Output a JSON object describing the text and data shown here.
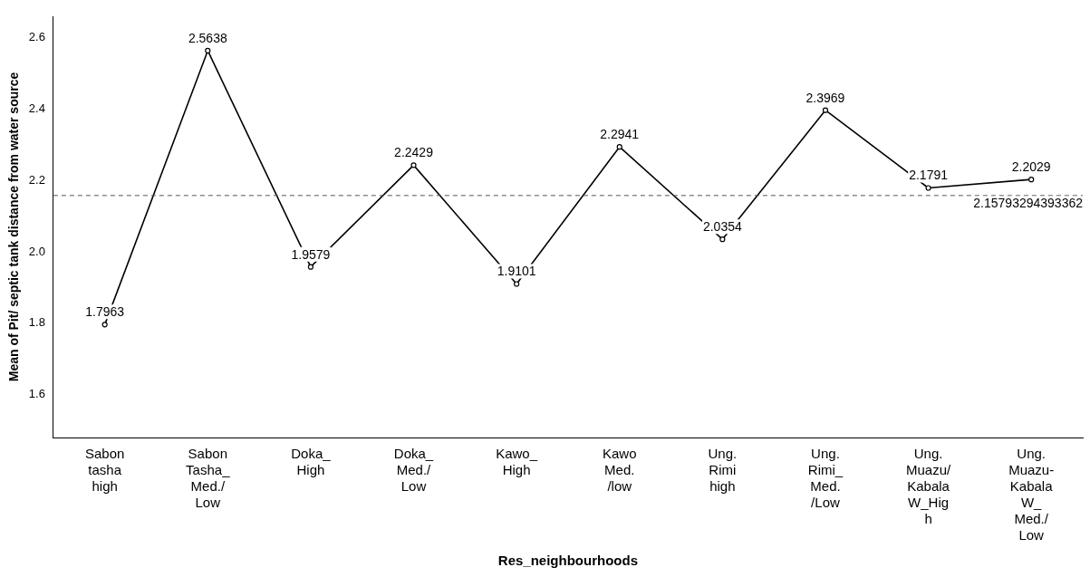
{
  "chart_data": {
    "type": "line",
    "xlabel": "Res_neighbourhoods",
    "ylabel": "Mean of Pit/ septic tank distance from water source",
    "categories": [
      "Sabon\ntasha\nhigh",
      "Sabon\nTasha_\nMed./\nLow",
      "Doka_\nHigh",
      "Doka_\nMed./\nLow",
      "Kawo_\nHigh",
      "Kawo\nMed.\n/low",
      "Ung.\nRimi\nhigh",
      "Ung.\nRimi_\nMed.\n/Low",
      "Ung.\nMuazu/\nKabala\nW_Hig\nh",
      "Ung.\nMuazu-\nKabala\nW_\nMed./\nLow"
    ],
    "series": [
      {
        "color": "#000000",
        "values": [
          1.7963,
          2.5638,
          1.9579,
          2.2429,
          1.9101,
          2.2941,
          2.0354,
          2.3969,
          2.1791,
          2.2029
        ]
      }
    ],
    "ylim": [
      1.48,
      2.66
    ],
    "yticks": [
      1.6,
      1.8,
      {
        "value": 2,
        "label": "2.0"
      },
      2.2,
      2.4,
      2.6
    ],
    "ref_lines": [
      {
        "axis": "y",
        "value": 2.15793294393362,
        "label": "2.15793294393362",
        "line_style": "dashed",
        "color": "#555555"
      }
    ],
    "data_labels": true,
    "marker": "circle",
    "line_style": "solid",
    "grid": false,
    "legend": false
  }
}
